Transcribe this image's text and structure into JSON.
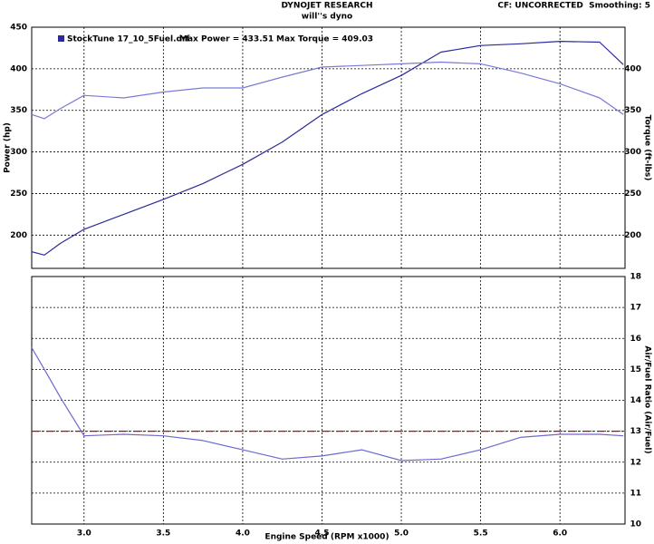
{
  "chart_data": [
    {
      "type": "line",
      "title": "DYNOJET RESEARCH",
      "subtitle": "will''s dyno",
      "note": "CF: UNCORRECTED  Smoothing: 5",
      "legend": {
        "run": "StockTune 17_10_5Fuel.drf",
        "max_power": "Max Power = 433.51",
        "max_torque": "Max Torque = 409.03",
        "color": "#2a2a9a"
      },
      "y_label": "Power (hp)",
      "y2_label": "Torque (ft-lbs)",
      "x": [
        2.67,
        2.75,
        2.85,
        3.0,
        3.25,
        3.5,
        3.75,
        4.0,
        4.25,
        4.5,
        4.75,
        5.0,
        5.25,
        5.5,
        5.75,
        6.0,
        6.25,
        6.4
      ],
      "series": [
        {
          "color": "#2a2a9a",
          "values": [
            180,
            176,
            190,
            207,
            225,
            243,
            262,
            285,
            312,
            345,
            370,
            392,
            420,
            428,
            430,
            433,
            432,
            405
          ]
        },
        {
          "color": "#7a7ad8",
          "axis": "y2",
          "values": [
            345,
            340,
            352,
            368,
            365,
            372,
            377,
            377,
            390,
            402,
            404,
            406,
            408,
            406,
            395,
            382,
            365,
            345
          ]
        }
      ],
      "xlim": [
        2.67,
        6.41
      ],
      "ylim": [
        160,
        450
      ],
      "yticks": [
        200,
        250,
        300,
        350,
        400,
        450
      ],
      "y2lim": [
        160,
        450
      ],
      "y2ticks": [
        200,
        250,
        300,
        350,
        400
      ],
      "grid": true
    },
    {
      "type": "line",
      "x_label": "Engine Speed (RPM x1000)",
      "y_label": "Air/Fuel Ratio (Air/Fuel)",
      "y_axis_side": "right",
      "x": [
        2.67,
        2.75,
        2.85,
        3.0,
        3.25,
        3.5,
        3.75,
        4.0,
        4.25,
        4.5,
        4.75,
        5.0,
        5.25,
        5.5,
        5.75,
        6.0,
        6.25,
        6.4
      ],
      "series": [
        {
          "color": "#6a6ad0",
          "values": [
            15.7,
            15,
            14.1,
            12.85,
            12.9,
            12.85,
            12.7,
            12.4,
            12.1,
            12.2,
            12.4,
            12.05,
            12.1,
            12.4,
            12.8,
            12.9,
            12.9,
            12.85
          ]
        }
      ],
      "reference_line": {
        "value": 13,
        "color": "#c00000"
      },
      "xlim": [
        2.67,
        6.41
      ],
      "xticks": [
        {
          "value": 3,
          "label": "3.0"
        },
        3.5,
        {
          "value": 4,
          "label": "4.0"
        },
        4.5,
        {
          "value": 5,
          "label": "5.0"
        },
        5.5,
        {
          "value": 6,
          "label": "6.0"
        }
      ],
      "ylim": [
        10,
        18
      ],
      "yticks": [
        10,
        11,
        12,
        13,
        14,
        15,
        16,
        17,
        18
      ],
      "grid": true
    }
  ]
}
